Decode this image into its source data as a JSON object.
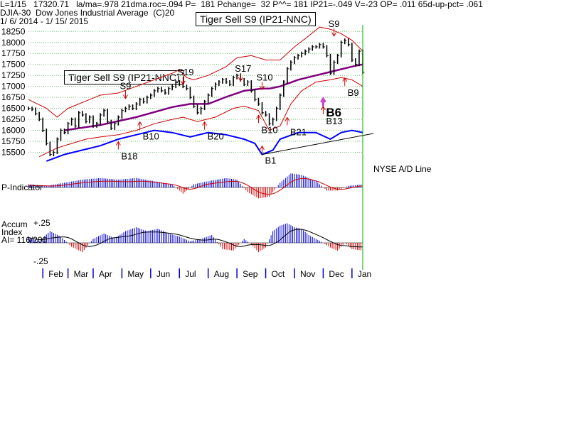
{
  "header": {
    "line1": "L=1/15   17320.71   la/ma=.978 21dma.roc=.094 P=  181 Pchange=  32 P^^= 181 IP21=-.049 V=-23 OP= .011 65d-up-pct= .061",
    "line2": "DJIA-30  Dow Jones Industrial Average  (C)20",
    "line3": "1/ 6/ 2014 - 1/ 15/ 2015"
  },
  "banners": [
    "Tiger Sell S9 (IP21-NNC)",
    "Tiger Sell S9 (IP21-NNC)"
  ],
  "colors": {
    "price_bar": "#000000",
    "ma_line": "#800080",
    "band": "#cc0000",
    "ad_line": "#0000ff",
    "pos_hist": "#0000cc",
    "neg_hist": "#cc0000",
    "grid": "#6ec26e",
    "cursor": "#00aa00",
    "b6_arrow": "#cc44cc"
  },
  "chart_data": {
    "type": "bar",
    "x_label_months": [
      "Feb",
      "Mar",
      "Apr",
      "May",
      "Jun",
      "Jul",
      "Aug",
      "Sep",
      "Oct",
      "Nov",
      "Dec",
      "Jan"
    ],
    "ylim": [
      15250,
      18400
    ],
    "y_ticks": [
      18250,
      18000,
      17750,
      17500,
      17250,
      17000,
      16750,
      16500,
      16250,
      16000,
      15750,
      15500
    ],
    "grid": true,
    "series": [
      {
        "key": "djia_close",
        "values": [
          [
            0,
            16500
          ],
          [
            1,
            16480
          ],
          [
            2,
            16380
          ],
          [
            3,
            16250
          ],
          [
            4,
            16000
          ],
          [
            5,
            15700
          ],
          [
            6,
            15450
          ],
          [
            7,
            15500
          ],
          [
            8,
            15800
          ],
          [
            9,
            16000
          ],
          [
            10,
            15950
          ],
          [
            11,
            16150
          ],
          [
            12,
            16250
          ],
          [
            13,
            16100
          ],
          [
            14,
            16400
          ],
          [
            15,
            16350
          ],
          [
            16,
            16200
          ],
          [
            17,
            16300
          ],
          [
            18,
            16100
          ],
          [
            19,
            16150
          ],
          [
            20,
            16350
          ],
          [
            21,
            16450
          ],
          [
            22,
            16200
          ],
          [
            23,
            16050
          ],
          [
            24,
            16150
          ],
          [
            25,
            16300
          ],
          [
            26,
            16450
          ],
          [
            27,
            16500
          ],
          [
            28,
            16550
          ],
          [
            29,
            16500
          ],
          [
            30,
            16600
          ],
          [
            31,
            16700
          ],
          [
            32,
            16650
          ],
          [
            33,
            16750
          ],
          [
            34,
            16800
          ],
          [
            35,
            16900
          ],
          [
            36,
            16950
          ],
          [
            37,
            16900
          ],
          [
            38,
            16850
          ],
          [
            39,
            16950
          ],
          [
            40,
            17000
          ],
          [
            41,
            17100
          ],
          [
            42,
            17050
          ],
          [
            43,
            17000
          ],
          [
            44,
            16950
          ],
          [
            45,
            16750
          ],
          [
            46,
            16550
          ],
          [
            47,
            16400
          ],
          [
            48,
            16500
          ],
          [
            49,
            16650
          ],
          [
            50,
            16800
          ],
          [
            51,
            16950
          ],
          [
            52,
            17050
          ],
          [
            53,
            17100
          ],
          [
            54,
            17150
          ],
          [
            55,
            17100
          ],
          [
            56,
            17050
          ],
          [
            57,
            17200
          ],
          [
            58,
            17250
          ],
          [
            59,
            17150
          ],
          [
            60,
            17050
          ],
          [
            61,
            17100
          ],
          [
            62,
            16900
          ],
          [
            63,
            16700
          ],
          [
            64,
            16600
          ],
          [
            65,
            16400
          ],
          [
            66,
            16350
          ],
          [
            67,
            16150
          ],
          [
            68,
            16250
          ],
          [
            69,
            16500
          ],
          [
            70,
            16800
          ],
          [
            71,
            17100
          ],
          [
            72,
            17400
          ],
          [
            73,
            17550
          ],
          [
            74,
            17650
          ],
          [
            75,
            17700
          ],
          [
            76,
            17750
          ],
          [
            77,
            17800
          ],
          [
            78,
            17850
          ],
          [
            79,
            17900
          ],
          [
            80,
            17900
          ],
          [
            81,
            17950
          ],
          [
            82,
            17900
          ],
          [
            83,
            17700
          ],
          [
            84,
            17300
          ],
          [
            85,
            17550
          ],
          [
            86,
            17700
          ],
          [
            87,
            18000
          ],
          [
            88,
            18050
          ],
          [
            89,
            17950
          ],
          [
            90,
            17600
          ],
          [
            91,
            17500
          ],
          [
            92,
            17800
          ],
          [
            93,
            17320
          ]
        ]
      },
      {
        "key": "moving_average",
        "values": [
          [
            10,
            16000
          ],
          [
            20,
            16120
          ],
          [
            30,
            16300
          ],
          [
            40,
            16530
          ],
          [
            45,
            16600
          ],
          [
            50,
            16600
          ],
          [
            55,
            16760
          ],
          [
            60,
            16900
          ],
          [
            65,
            16950
          ],
          [
            67,
            16950
          ],
          [
            70,
            17000
          ],
          [
            75,
            17150
          ],
          [
            80,
            17250
          ],
          [
            85,
            17350
          ],
          [
            90,
            17450
          ],
          [
            93,
            17500
          ]
        ]
      },
      {
        "key": "upper_band",
        "values": [
          [
            0,
            16700
          ],
          [
            5,
            16500
          ],
          [
            8,
            16300
          ],
          [
            11,
            16500
          ],
          [
            14,
            16600
          ],
          [
            17,
            16700
          ],
          [
            20,
            16800
          ],
          [
            25,
            16850
          ],
          [
            30,
            17000
          ],
          [
            35,
            17150
          ],
          [
            40,
            17300
          ],
          [
            42,
            17380
          ],
          [
            44,
            17200
          ],
          [
            46,
            17150
          ],
          [
            50,
            17250
          ],
          [
            55,
            17450
          ],
          [
            58,
            17650
          ],
          [
            62,
            17700
          ],
          [
            66,
            17600
          ],
          [
            70,
            17600
          ],
          [
            74,
            17900
          ],
          [
            78,
            18150
          ],
          [
            81,
            18350
          ],
          [
            84,
            18300
          ],
          [
            87,
            18200
          ],
          [
            90,
            18050
          ],
          [
            93,
            17800
          ]
        ]
      },
      {
        "key": "lower_band",
        "values": [
          [
            3,
            15400
          ],
          [
            8,
            15600
          ],
          [
            12,
            15700
          ],
          [
            16,
            15800
          ],
          [
            20,
            15850
          ],
          [
            25,
            15900
          ],
          [
            30,
            16000
          ],
          [
            35,
            16150
          ],
          [
            40,
            16250
          ],
          [
            43,
            16300
          ],
          [
            47,
            16200
          ],
          [
            52,
            16300
          ],
          [
            57,
            16500
          ],
          [
            60,
            16550
          ],
          [
            64,
            16450
          ],
          [
            67,
            16000
          ],
          [
            70,
            16100
          ],
          [
            73,
            16600
          ],
          [
            76,
            16900
          ],
          [
            80,
            17100
          ],
          [
            84,
            17150
          ],
          [
            87,
            17200
          ],
          [
            90,
            17150
          ],
          [
            93,
            17000
          ]
        ]
      },
      {
        "key": "nyse_ad_line",
        "values": [
          [
            5,
            15300
          ],
          [
            10,
            15450
          ],
          [
            15,
            15550
          ],
          [
            20,
            15650
          ],
          [
            25,
            15800
          ],
          [
            30,
            15900
          ],
          [
            35,
            16000
          ],
          [
            40,
            15950
          ],
          [
            45,
            15850
          ],
          [
            50,
            15950
          ],
          [
            55,
            15900
          ],
          [
            60,
            15800
          ],
          [
            63,
            15700
          ],
          [
            65,
            15450
          ],
          [
            68,
            15550
          ],
          [
            70,
            15800
          ],
          [
            75,
            15950
          ],
          [
            80,
            15950
          ],
          [
            84,
            15800
          ],
          [
            87,
            15950
          ],
          [
            90,
            16000
          ],
          [
            93,
            15950
          ]
        ]
      },
      {
        "key": "p_indicator",
        "values": [
          [
            0,
            0.2
          ],
          [
            5,
            0.1
          ],
          [
            10,
            0.3
          ],
          [
            15,
            0.5
          ],
          [
            20,
            0.6
          ],
          [
            25,
            0.5
          ],
          [
            30,
            0.6
          ],
          [
            35,
            0.4
          ],
          [
            40,
            0.2
          ],
          [
            43,
            -0.4
          ],
          [
            46,
            0.2
          ],
          [
            50,
            0.4
          ],
          [
            55,
            0.6
          ],
          [
            58,
            0.5
          ],
          [
            61,
            -0.3
          ],
          [
            64,
            -0.7
          ],
          [
            67,
            -0.6
          ],
          [
            70,
            0.3
          ],
          [
            73,
            0.9
          ],
          [
            76,
            0.8
          ],
          [
            80,
            0.4
          ],
          [
            83,
            -0.2
          ],
          [
            86,
            -0.2
          ],
          [
            89,
            0.1
          ],
          [
            93,
            0.2
          ]
        ]
      },
      {
        "key": "accum_index",
        "values": [
          [
            0,
            0.08
          ],
          [
            3,
            0.02
          ],
          [
            6,
            0.15
          ],
          [
            9,
            0.08
          ],
          [
            12,
            -0.05
          ],
          [
            15,
            -0.12
          ],
          [
            18,
            0.05
          ],
          [
            21,
            0.12
          ],
          [
            24,
            0.06
          ],
          [
            27,
            0.15
          ],
          [
            30,
            0.2
          ],
          [
            33,
            0.15
          ],
          [
            36,
            0.18
          ],
          [
            39,
            0.12
          ],
          [
            42,
            0.08
          ],
          [
            45,
            0.02
          ],
          [
            48,
            0.05
          ],
          [
            51,
            0.1
          ],
          [
            54,
            -0.08
          ],
          [
            57,
            -0.1
          ],
          [
            60,
            0.05
          ],
          [
            62,
            -0.02
          ],
          [
            64,
            -0.12
          ],
          [
            66,
            -0.06
          ],
          [
            68,
            0.15
          ],
          [
            70,
            0.22
          ],
          [
            72,
            0.25
          ],
          [
            74,
            0.2
          ],
          [
            76,
            0.18
          ],
          [
            78,
            0.1
          ],
          [
            80,
            0.05
          ],
          [
            82,
            0.0
          ],
          [
            84,
            -0.06
          ],
          [
            86,
            -0.1
          ],
          [
            88,
            0.0
          ],
          [
            90,
            -0.08
          ],
          [
            93,
            -0.1
          ]
        ]
      }
    ],
    "signals": [
      {
        "text": "S9",
        "x": 27,
        "y": 17000,
        "dir": "down"
      },
      {
        "text": "S19",
        "x": 43,
        "y": 17320,
        "dir": "down"
      },
      {
        "text": "S17",
        "x": 59,
        "y": 17400,
        "dir": "down"
      },
      {
        "text": "S10",
        "x": 65,
        "y": 17200,
        "dir": "down"
      },
      {
        "text": "S9",
        "x": 85,
        "y": 18420,
        "dir": "down"
      },
      {
        "text": "B18",
        "x": 25,
        "y": 15500,
        "dir": "up"
      },
      {
        "text": "B10",
        "x": 31,
        "y": 15950,
        "dir": "up"
      },
      {
        "text": "B20",
        "x": 49,
        "y": 15950,
        "dir": "up"
      },
      {
        "text": "B10",
        "x": 64,
        "y": 16100,
        "dir": "up"
      },
      {
        "text": "B1",
        "x": 65,
        "y": 15400,
        "dir": "up"
      },
      {
        "text": "B21",
        "x": 72,
        "y": 16050,
        "dir": "up"
      },
      {
        "text": "B13",
        "x": 82,
        "y": 16300,
        "dir": "up"
      },
      {
        "text": "B6",
        "x": 82,
        "y": 16480,
        "dir": "up"
      },
      {
        "text": "B9",
        "x": 88,
        "y": 16950,
        "dir": "up"
      }
    ],
    "p_indicator_label": "P-Indicator",
    "accum_label": "Accum\nIndex\nAI= 116/200",
    "accum_ticks": [
      "+.25",
      "-.25"
    ],
    "ad_label": "NYSE A/D Line"
  }
}
